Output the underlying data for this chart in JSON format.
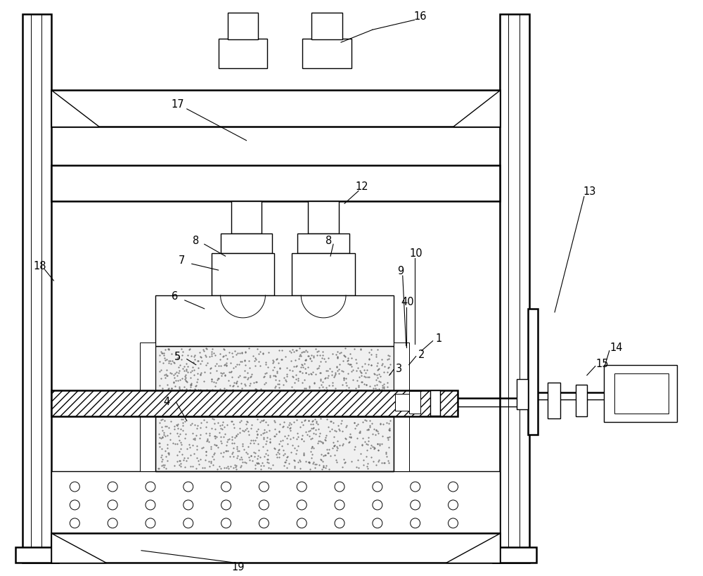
{
  "bg_color": "#ffffff",
  "line_color": "#000000",
  "fig_width": 10.0,
  "fig_height": 8.2,
  "dpi": 100
}
